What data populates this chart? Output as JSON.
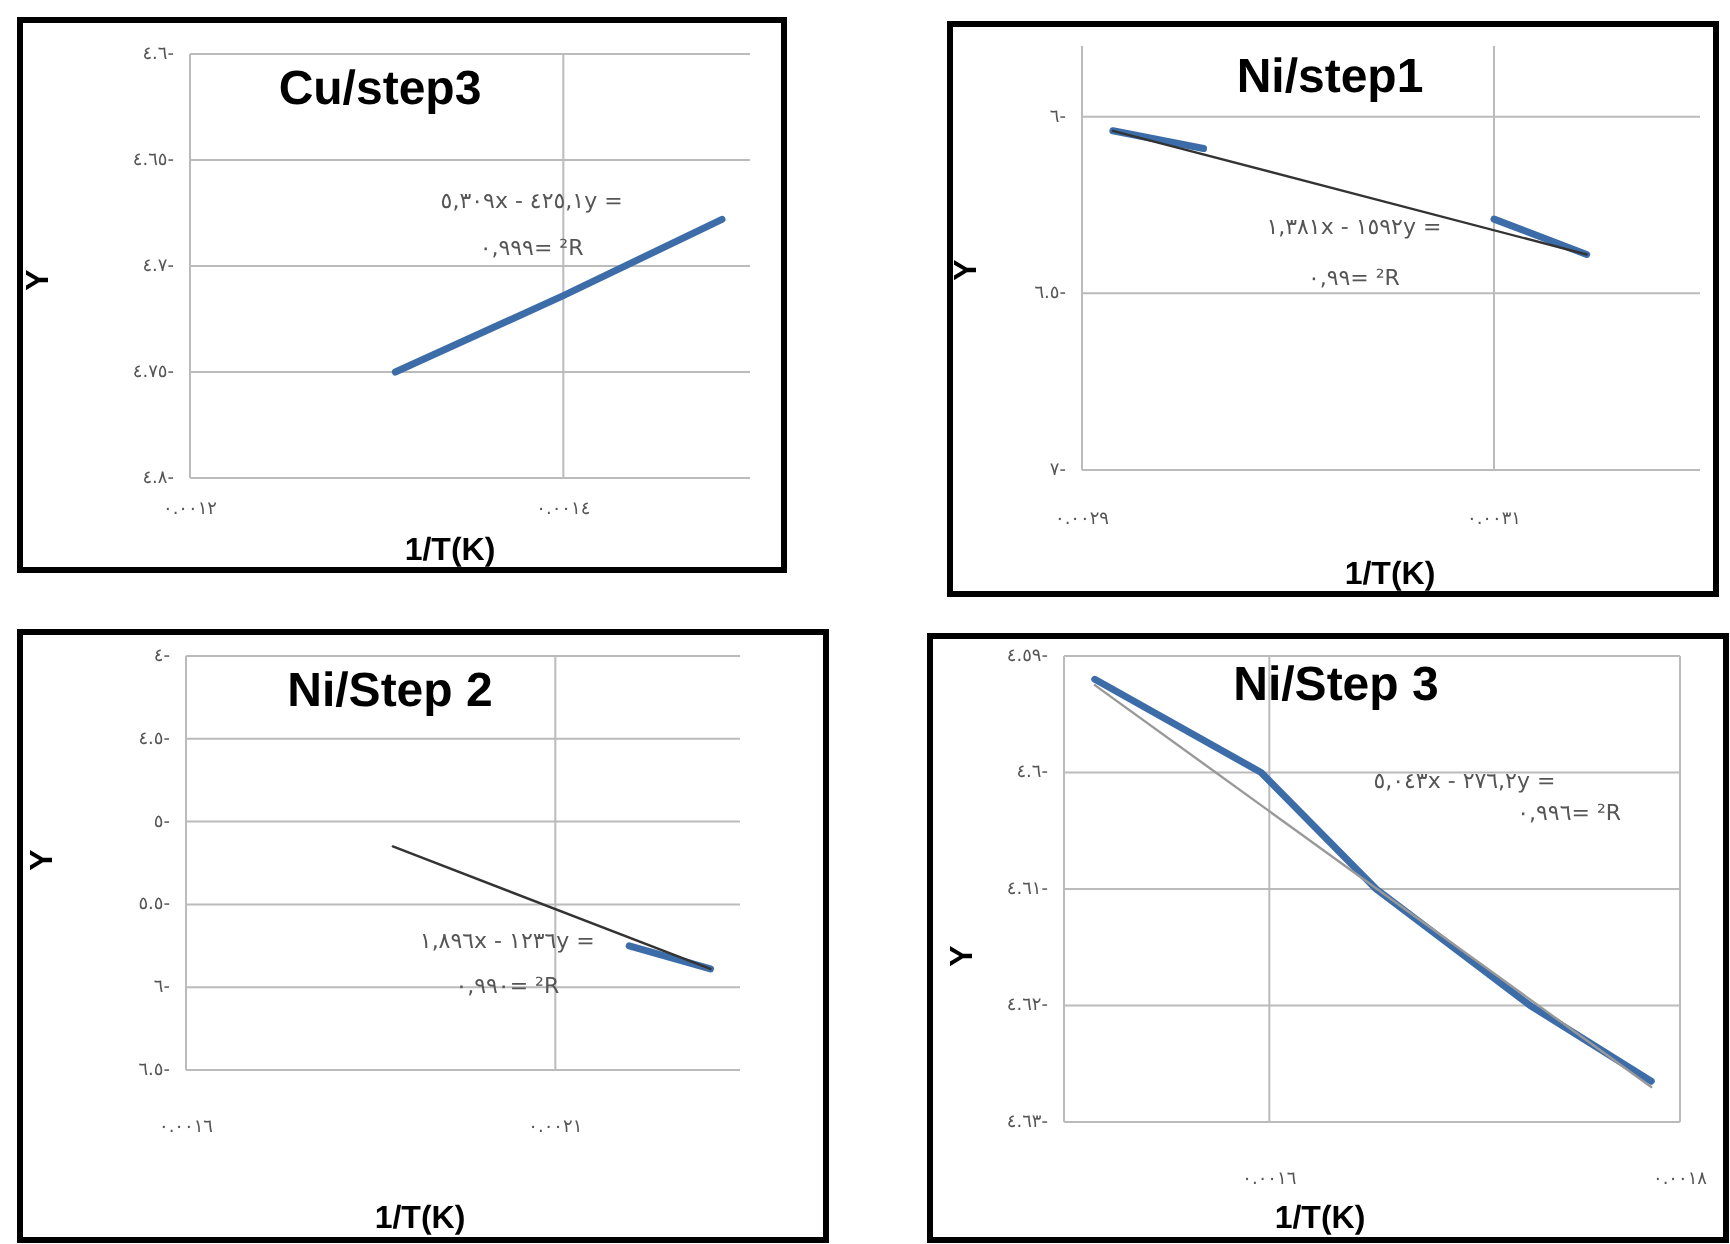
{
  "chart_data": [
    {
      "type": "line",
      "title": "Cu/step3",
      "xlabel": "1/T(K)",
      "ylabel": "Y",
      "grid": true,
      "xlim": [
        0.0012,
        0.0015
      ],
      "xticks": [
        {
          "value": 0.0012,
          "label": "٠.٠٠١٢"
        },
        {
          "value": 0.0014,
          "label": "٠.٠٠١٤"
        }
      ],
      "ylim": [
        -4.8,
        -4.6
      ],
      "yticks": [
        {
          "value": -4.6,
          "label": "٤.٦-"
        },
        {
          "value": -4.65,
          "label": "٤.٦٥-"
        },
        {
          "value": -4.7,
          "label": "٤.٧-"
        },
        {
          "value": -4.75,
          "label": "٤.٧٥-"
        },
        {
          "value": -4.8,
          "label": "٤.٨-"
        }
      ],
      "annotations": [
        "٥,٣٠٩x - ٤٢٥,١y =",
        "٠,٩٩٩= ²R"
      ],
      "series": [
        {
          "color": "#3d6da8",
          "x": [
            0.00131,
            0.0014,
            0.001485
          ],
          "values": [
            -4.75,
            -4.714,
            -4.678
          ]
        }
      ]
    },
    {
      "type": "line",
      "title": "Ni/step1",
      "xlabel": "1/T(K)",
      "ylabel": "Y",
      "grid": true,
      "xlim": [
        0.0029,
        0.0032
      ],
      "xticks": [
        {
          "value": 0.0029,
          "label": "٠.٠٠٢٩"
        },
        {
          "value": 0.0031,
          "label": "٠.٠٠٣١"
        }
      ],
      "ylim": [
        -7,
        -5.8
      ],
      "yticks": [
        {
          "value": -6,
          "label": "٦-"
        },
        {
          "value": -6.5,
          "label": "٦.٥-"
        },
        {
          "value": -7,
          "label": "٧-"
        }
      ],
      "annotations": [
        "١,٣٨١x - ١٥٩٢y =",
        "٠,٩٩= ²R"
      ],
      "series": [
        {
          "color": "#3d6da8",
          "x": [
            0.002915,
            0.002959,
            0.00303,
            0.0031,
            0.003145
          ],
          "values": [
            -6.04,
            -6.09,
            null,
            -6.29,
            -6.39
          ]
        },
        {
          "color": "#333333",
          "x": [
            0.002915,
            0.003145
          ],
          "values": [
            -6.04,
            -6.39
          ]
        }
      ]
    },
    {
      "type": "line",
      "title": "Ni/Step 2",
      "xlabel": "1/T(K)",
      "ylabel": "Y",
      "grid": true,
      "xlim": [
        0.0016,
        0.00235
      ],
      "xticks": [
        {
          "value": 0.0016,
          "label": "٠.٠٠١٦"
        },
        {
          "value": 0.0021,
          "label": "٠.٠٠٢١"
        }
      ],
      "ylim": [
        -6.5,
        -4
      ],
      "yticks": [
        {
          "value": -4,
          "label": "٤-"
        },
        {
          "value": -4.5,
          "label": "٤.٥-"
        },
        {
          "value": -5,
          "label": "٥-"
        },
        {
          "value": -5.5,
          "label": "٥.٥-"
        },
        {
          "value": -6,
          "label": "٦-"
        },
        {
          "value": -6.5,
          "label": "٦.٥-"
        }
      ],
      "annotations": [
        "١,٨٩٦x - ١٢٣٦y =",
        "٠,٩٩٠= ²R"
      ],
      "series": [
        {
          "color": "#3d6da8",
          "x": [
            0.0022,
            0.00231
          ],
          "values": [
            -5.75,
            -5.89
          ]
        },
        {
          "color": "#333333",
          "x": [
            0.00188,
            0.00231
          ],
          "values": [
            -5.15,
            -5.89
          ]
        }
      ]
    },
    {
      "type": "line",
      "title": "Ni/Step 3",
      "xlabel": "1/T(K)",
      "ylabel": "Y",
      "grid": true,
      "xlim": [
        0.0015,
        0.0018
      ],
      "xticks": [
        {
          "value": 0.0016,
          "label": "٠.٠٠١٦"
        },
        {
          "value": 0.0018,
          "label": "٠.٠٠١٨"
        }
      ],
      "ylim": [
        -4.63,
        -4.59
      ],
      "yticks": [
        {
          "value": -4.59,
          "label": "٤.٥٩-"
        },
        {
          "value": -4.6,
          "label": "٤.٦-"
        },
        {
          "value": -4.61,
          "label": "٤.٦١-"
        },
        {
          "value": -4.62,
          "label": "٤.٦٢-"
        },
        {
          "value": -4.63,
          "label": "٤.٦٣-"
        }
      ],
      "annotations": [
        "٥,٠٤٣x - ٢٧٦,٢y =",
        "٠,٩٩٦= ²R"
      ],
      "series": [
        {
          "color": "#3d6da8",
          "x": [
            0.001515,
            0.001596,
            0.001652,
            0.001727,
            0.001786
          ],
          "values": [
            -4.592,
            -4.6,
            -4.61,
            -4.62,
            -4.6265
          ]
        },
        {
          "color": "#999999",
          "x": [
            0.001515,
            0.001786
          ],
          "values": [
            -4.5925,
            -4.627
          ]
        }
      ]
    }
  ]
}
